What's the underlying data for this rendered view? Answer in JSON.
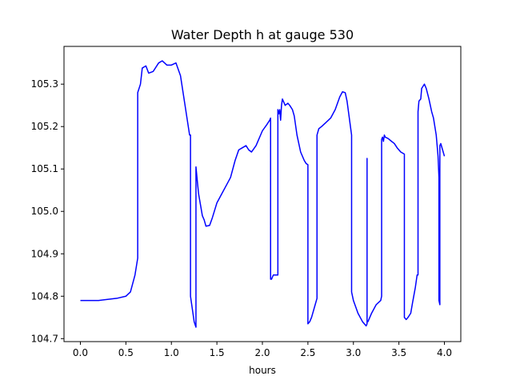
{
  "chart_data": {
    "type": "line",
    "title": "Water Depth h at gauge 530",
    "xlabel": "hours",
    "ylabel": "",
    "xlim": [
      -0.18,
      4.18
    ],
    "ylim": [
      104.693,
      105.389
    ],
    "x_ticks": [
      0.0,
      0.5,
      1.0,
      1.5,
      2.0,
      2.5,
      3.0,
      3.5,
      4.0
    ],
    "x_tick_labels": [
      "0.0",
      "0.5",
      "1.0",
      "1.5",
      "2.0",
      "2.5",
      "3.0",
      "3.5",
      "4.0"
    ],
    "y_ticks": [
      104.7,
      104.8,
      104.9,
      105.0,
      105.1,
      105.2,
      105.3
    ],
    "y_tick_labels": [
      "104.7",
      "104.8",
      "104.9",
      "105.0",
      "105.1",
      "105.2",
      "105.3"
    ],
    "grid": false,
    "series": [
      {
        "color": "#0000ff",
        "x": [
          0.0,
          0.2,
          0.4,
          0.5,
          0.55,
          0.6,
          0.63,
          0.63,
          0.66,
          0.68,
          0.72,
          0.75,
          0.8,
          0.86,
          0.9,
          0.95,
          1.0,
          1.05,
          1.1,
          1.15,
          1.2,
          1.21,
          1.21,
          1.25,
          1.27,
          1.27,
          1.29,
          1.3,
          1.34,
          1.36,
          1.38,
          1.42,
          1.45,
          1.5,
          1.55,
          1.6,
          1.65,
          1.7,
          1.74,
          1.78,
          1.82,
          1.85,
          1.88,
          1.93,
          2.0,
          2.05,
          2.08,
          2.09,
          2.09,
          2.1,
          2.12,
          2.16,
          2.17,
          2.17,
          2.18,
          2.19,
          2.2,
          2.21,
          2.22,
          2.25,
          2.28,
          2.3,
          2.33,
          2.35,
          2.38,
          2.42,
          2.46,
          2.48,
          2.5,
          2.5,
          2.52,
          2.54,
          2.58,
          2.6,
          2.6,
          2.62,
          2.65,
          2.7,
          2.75,
          2.8,
          2.85,
          2.88,
          2.91,
          2.93,
          2.98,
          2.98,
          3.0,
          3.05,
          3.1,
          3.14,
          3.15,
          3.15,
          3.15,
          3.16,
          3.2,
          3.25,
          3.3,
          3.31,
          3.31,
          3.32,
          3.33,
          3.34,
          3.35,
          3.38,
          3.42,
          3.45,
          3.48,
          3.52,
          3.56,
          3.56,
          3.58,
          3.6,
          3.63,
          3.65,
          3.68,
          3.7,
          3.71,
          3.71,
          3.72,
          3.74,
          3.75,
          3.78,
          3.8,
          3.83,
          3.86,
          3.88,
          3.91,
          3.93,
          3.94,
          3.94,
          3.95,
          3.95,
          3.96,
          3.98,
          4.0
        ],
        "y": [
          104.79,
          104.79,
          104.795,
          104.8,
          104.81,
          104.85,
          104.89,
          105.28,
          105.3,
          105.338,
          105.343,
          105.326,
          105.33,
          105.35,
          105.355,
          105.345,
          105.345,
          105.35,
          105.32,
          105.25,
          105.18,
          105.18,
          104.8,
          104.74,
          104.727,
          105.105,
          105.06,
          105.04,
          104.99,
          104.98,
          104.965,
          104.967,
          104.985,
          105.02,
          105.04,
          105.06,
          105.08,
          105.12,
          105.145,
          105.15,
          105.155,
          105.145,
          105.14,
          105.155,
          105.19,
          105.205,
          105.215,
          105.22,
          104.84,
          104.84,
          104.85,
          104.85,
          104.85,
          105.24,
          105.23,
          105.24,
          105.215,
          105.25,
          105.265,
          105.25,
          105.255,
          105.25,
          105.24,
          105.225,
          105.18,
          105.14,
          105.12,
          105.113,
          105.11,
          104.735,
          104.74,
          104.75,
          104.78,
          104.795,
          105.18,
          105.195,
          105.2,
          105.21,
          105.22,
          105.24,
          105.27,
          105.282,
          105.28,
          105.26,
          105.18,
          104.81,
          104.79,
          104.76,
          104.74,
          104.73,
          104.735,
          105.125,
          104.74,
          104.74,
          104.76,
          104.78,
          104.79,
          104.8,
          105.17,
          105.175,
          105.165,
          105.18,
          105.175,
          105.172,
          105.165,
          105.16,
          105.15,
          105.14,
          105.135,
          104.75,
          104.745,
          104.75,
          104.76,
          104.785,
          104.82,
          104.85,
          104.85,
          105.235,
          105.26,
          105.265,
          105.29,
          105.3,
          105.29,
          105.265,
          105.235,
          105.22,
          105.18,
          105.13,
          105.08,
          104.79,
          104.78,
          105.155,
          105.16,
          105.145,
          105.13
        ]
      }
    ]
  }
}
